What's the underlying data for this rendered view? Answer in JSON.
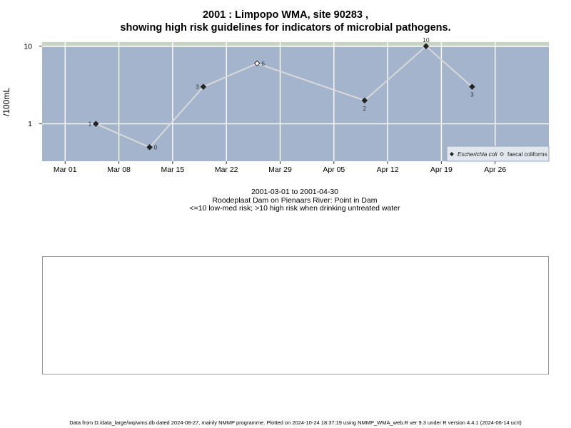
{
  "chart_data": {
    "type": "line",
    "title": "2001 : Limpopo WMA, site 90283 ,",
    "subtitle": "showing high risk guidelines for indicators of microbial pathogens.",
    "ylabel": "/100mL",
    "y_scale": "log",
    "y_ticks": [
      1,
      10
    ],
    "x_ticks": [
      "Mar 01",
      "Mar 08",
      "Mar 15",
      "Mar 22",
      "Mar 29",
      "Apr 05",
      "Apr 12",
      "Apr 19",
      "Apr 26"
    ],
    "x_tick_dates": [
      "2001-03-01",
      "2001-03-08",
      "2001-03-15",
      "2001-03-22",
      "2001-03-29",
      "2001-04-05",
      "2001-04-12",
      "2001-04-19",
      "2001-04-26"
    ],
    "xlim": [
      "2001-02-26",
      "2001-05-03"
    ],
    "ylim": [
      0.33,
      11.3
    ],
    "grid": true,
    "legend_position": "bottom-right",
    "series": [
      {
        "name": "Escherichia coli",
        "marker": "filled-diamond",
        "points": [
          {
            "x": "2001-03-05",
            "y": 1,
            "label": "1"
          },
          {
            "x": "2001-03-12",
            "y": 0.5,
            "label": "0"
          },
          {
            "x": "2001-03-19",
            "y": 3,
            "label": "3"
          },
          {
            "x": "2001-04-09",
            "y": 2,
            "label": "2"
          },
          {
            "x": "2001-04-17",
            "y": 10,
            "label": "10"
          },
          {
            "x": "2001-04-23",
            "y": 3,
            "label": "3"
          }
        ]
      },
      {
        "name": "faecal coliforms",
        "marker": "open-diamond",
        "points": [
          {
            "x": "2001-03-26",
            "y": 6,
            "label": "6"
          }
        ]
      }
    ],
    "connecting_line_color": "#d9d9d9",
    "high_risk_threshold": 10,
    "colors": {
      "low_risk_band": "#a3b4cc",
      "high_risk_band": "#c8d4c3",
      "grid": "#ffffff"
    }
  },
  "captions": {
    "date_range": "2001-03-01 to 2001-04-30",
    "location": "Roodeplaat Dam on Pienaars River: Point in Dam",
    "risk_note": "<=10 low-med risk; >10 high risk when drinking untreated water"
  },
  "footer": "Data from D:/data_large/wq/wms.db dated 2024-08-27, mainly NMMP programme. Plotted on 2024-10-24 18:37:19 using NMMP_WMA_web.R ver 9.3 under R version 4.4.1 (2024-06-14 ucrt)"
}
